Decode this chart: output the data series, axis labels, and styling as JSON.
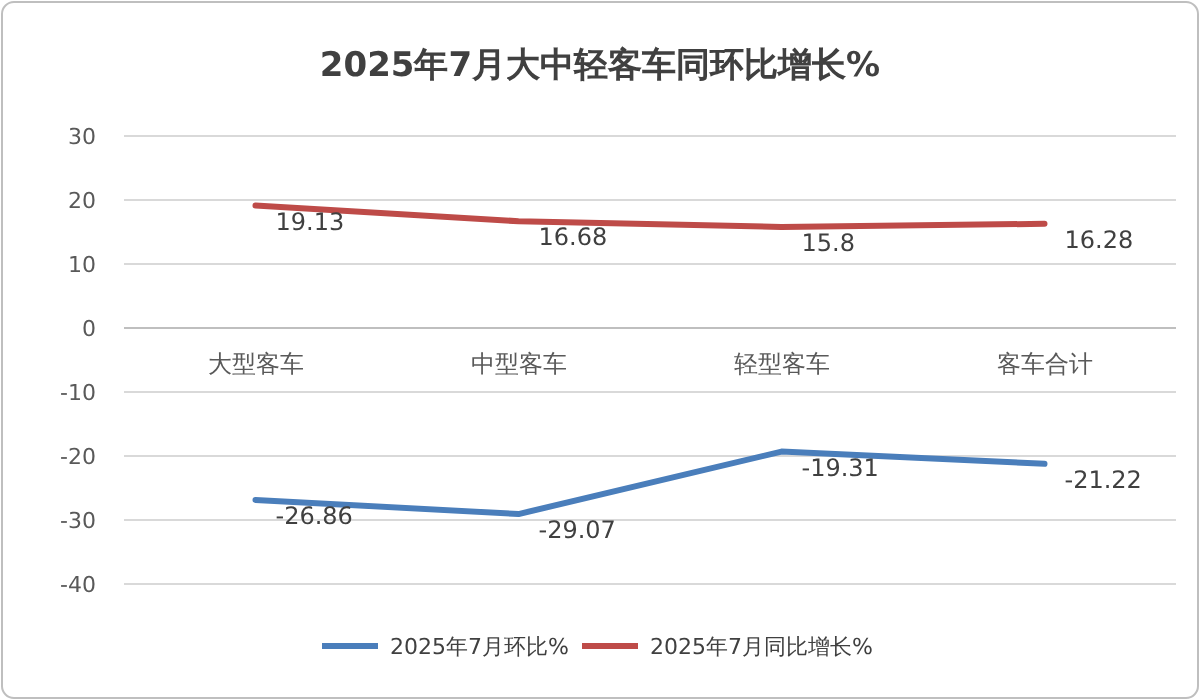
{
  "chart_data": {
    "type": "line",
    "title": "2025年7月大中轻客车同环比增长%",
    "categories": [
      "大型客车",
      "中型客车",
      "轻型客车",
      "客车合计"
    ],
    "series": [
      {
        "name": "2025年7月环比%",
        "color": "#4a7ebb",
        "values": [
          -26.86,
          -29.07,
          -19.31,
          -21.22
        ]
      },
      {
        "name": "2025年7月同比增长%",
        "color": "#be4b48",
        "values": [
          19.13,
          16.68,
          15.8,
          16.28
        ]
      }
    ],
    "ylim": [
      -40,
      30
    ],
    "yticks": [
      -40,
      -30,
      -20,
      -10,
      0,
      10,
      20,
      30
    ],
    "grid": "y",
    "legend": "bottom",
    "data_labels": true
  }
}
